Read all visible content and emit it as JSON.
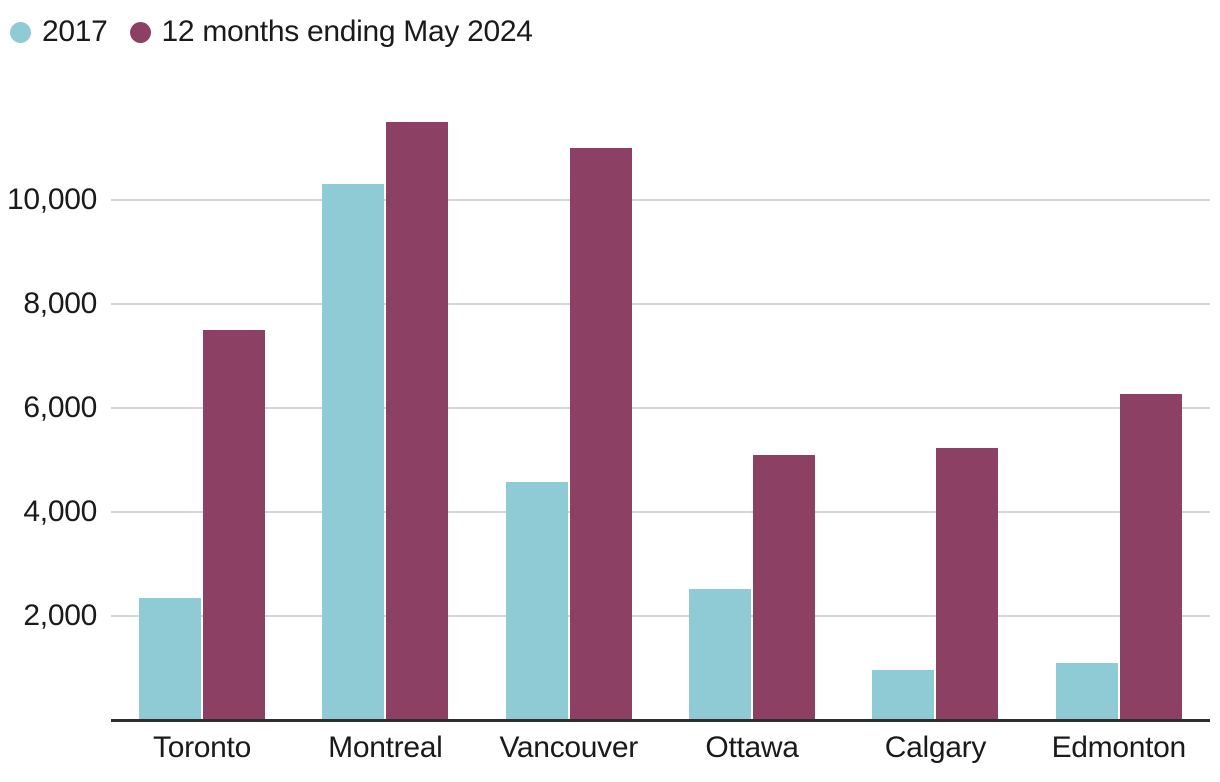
{
  "chart_data": {
    "type": "bar",
    "title": "",
    "xlabel": "",
    "ylabel": "",
    "categories": [
      "Toronto",
      "Montreal",
      "Vancouver",
      "Ottawa",
      "Calgary",
      "Edmonton"
    ],
    "series": [
      {
        "name": "2017",
        "color": "#8ECBD5",
        "values": [
          2350,
          10300,
          4580,
          2510,
          960,
          1090
        ]
      },
      {
        "name": "12 months ending May 2024",
        "color": "#8C4164",
        "values": [
          7500,
          11500,
          11000,
          5100,
          5230,
          6270
        ]
      }
    ],
    "ylim": [
      0,
      12000
    ],
    "yticks": [
      2000,
      4000,
      6000,
      8000,
      10000
    ],
    "ytick_labels": [
      "2,000",
      "4,000",
      "6,000",
      "8,000",
      "10,000"
    ],
    "grid": true,
    "legend_position": "top-left"
  },
  "styles": {
    "background": "#FFFFFF",
    "grid_color": "#D5D5D5",
    "axis_color": "#2E2E2E",
    "text_color": "#1A1A1A"
  }
}
